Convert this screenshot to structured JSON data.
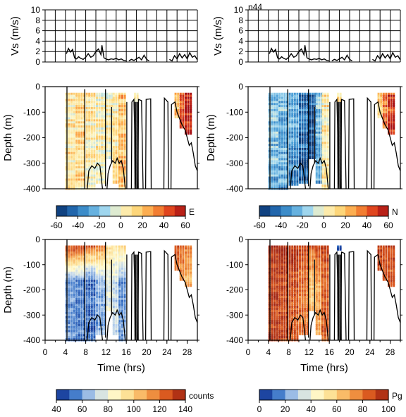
{
  "figure": {
    "annotation": "n44"
  },
  "colors": {
    "diverging": [
      "#08306b",
      "#2166ac",
      "#4a9fd8",
      "#9fd6ee",
      "#fdf6c3",
      "#fdd67a",
      "#fb9a3c",
      "#e0461f",
      "#a50f15"
    ],
    "sequential": [
      "#0b2a8c",
      "#3f78c9",
      "#b9d2ee",
      "#fffbd0",
      "#fddc8c",
      "#f5a04a",
      "#d9561e",
      "#9c1f10"
    ],
    "trace": "#000000"
  },
  "chart_data": [
    {
      "type": "line",
      "panel": "vs-left",
      "ylabel": "Vs (m/s)",
      "ylim": [
        0,
        10
      ],
      "yticks": [
        0,
        2,
        4,
        6,
        8,
        10
      ],
      "xlim": [
        0,
        30
      ],
      "xticks": [
        0,
        2,
        4,
        6,
        8,
        10,
        12,
        14,
        16,
        18,
        20,
        22,
        24,
        26,
        28,
        30
      ],
      "grid": true,
      "series": [
        {
          "x": [
            4.2,
            4.6,
            5.0,
            5.4,
            5.8,
            6.2,
            6.6,
            7.0,
            7.5,
            8.0,
            8.5,
            9.0,
            9.5,
            10.0,
            10.5,
            11.0,
            11.2,
            11.6,
            12.0,
            12.5,
            13.0,
            13.5,
            14.0,
            14.5,
            15.0,
            15.5,
            16.0
          ],
          "y": [
            1.6,
            2.6,
            1.9,
            2.4,
            0.8,
            0.6,
            1.0,
            0.7,
            0.5,
            0.9,
            1.6,
            0.9,
            1.2,
            2.0,
            2.5,
            1.4,
            3.2,
            0.8,
            0.6,
            0.4,
            0.6,
            0.5,
            0.7,
            0.4,
            0.6,
            0.3,
            0.2
          ]
        },
        {
          "x": [
            16.5,
            17.0,
            17.5,
            18.0,
            18.5,
            19.0,
            19.5,
            20.0,
            20.5
          ],
          "y": [
            0.2,
            0.5,
            0.3,
            0.6,
            0.9,
            0.4,
            1.3,
            0.5,
            0.2
          ]
        },
        {
          "x": [
            24.5,
            25.0,
            25.5,
            26.0,
            26.5,
            27.0,
            27.5,
            28.0,
            28.5,
            29.0,
            29.5,
            30.0
          ],
          "y": [
            0.5,
            0.2,
            1.2,
            0.6,
            1.6,
            0.8,
            1.4,
            0.6,
            1.8,
            0.9,
            1.2,
            0.4
          ]
        }
      ]
    },
    {
      "type": "line",
      "panel": "vs-right",
      "ylabel": "Vs (m/s)",
      "ylim": [
        0,
        10
      ],
      "yticks": [
        0,
        2,
        4,
        6,
        8,
        10
      ],
      "xlim": [
        0,
        30
      ],
      "xticks": [
        0,
        2,
        4,
        6,
        8,
        10,
        12,
        14,
        16,
        18,
        20,
        22,
        24,
        26,
        28,
        30
      ],
      "grid": true,
      "series": [
        {
          "x": [
            4.2,
            4.6,
            5.0,
            5.4,
            5.8,
            6.2,
            6.6,
            7.0,
            7.5,
            8.0,
            8.5,
            9.0,
            9.5,
            10.0,
            10.5,
            11.0,
            11.2,
            11.6,
            12.0,
            12.5,
            13.0,
            13.5,
            14.0,
            14.5,
            15.0,
            15.5,
            16.0
          ],
          "y": [
            1.6,
            2.6,
            1.9,
            2.4,
            0.8,
            0.6,
            1.0,
            0.7,
            0.5,
            0.9,
            1.6,
            0.9,
            1.2,
            2.0,
            2.5,
            1.4,
            3.2,
            0.8,
            0.6,
            0.4,
            0.6,
            0.5,
            0.7,
            0.4,
            0.6,
            0.3,
            0.2
          ]
        },
        {
          "x": [
            16.5,
            17.0,
            17.5,
            18.0,
            18.5,
            19.0,
            19.5,
            20.0,
            20.5
          ],
          "y": [
            0.2,
            0.5,
            0.3,
            0.6,
            0.9,
            0.4,
            1.3,
            0.5,
            0.2
          ]
        },
        {
          "x": [
            24.5,
            25.0,
            25.5,
            26.0,
            26.5,
            27.0,
            27.5,
            28.0,
            28.5,
            29.0,
            29.5,
            30.0
          ],
          "y": [
            0.5,
            0.2,
            1.2,
            0.6,
            1.6,
            0.8,
            1.4,
            0.6,
            1.8,
            0.9,
            1.2,
            0.4
          ]
        }
      ]
    },
    {
      "type": "heatmap",
      "panel": "depth-E",
      "ylabel": "Depth (m)",
      "ylim": [
        -400,
        0
      ],
      "yticks": [
        0,
        -100,
        -200,
        -300,
        -400
      ],
      "xlim": [
        0,
        30
      ],
      "colormap": "diverging",
      "colorbar": {
        "label": "E",
        "range": [
          -60,
          60
        ],
        "ticks": [
          -60,
          -40,
          -20,
          0,
          20,
          40,
          60
        ]
      },
      "columns": [
        {
          "x": [
            4,
            6
          ],
          "ybottom": -400,
          "mean": 10
        },
        {
          "x": [
            6,
            8
          ],
          "ybottom": -400,
          "mean": 14
        },
        {
          "x": [
            8,
            10
          ],
          "ybottom": -400,
          "mean": 6
        },
        {
          "x": [
            10,
            12
          ],
          "ybottom": -380,
          "mean": 4
        },
        {
          "x": [
            12,
            13.3
          ],
          "ybottom": -280,
          "mean": 2
        },
        {
          "x": [
            13.3,
            14.5
          ],
          "ybottom": -380,
          "mean": 8
        },
        {
          "x": [
            14.5,
            16
          ],
          "ybottom": -400,
          "mean": 20
        },
        {
          "x": [
            17.5,
            18.5
          ],
          "ybottom": -60,
          "mean": 5
        },
        {
          "x": [
            25.5,
            26.5
          ],
          "ybottom": -120,
          "mean": 20
        },
        {
          "x": [
            26.5,
            27.5
          ],
          "ybottom": -160,
          "mean": 40
        },
        {
          "x": [
            27.5,
            28.7
          ],
          "ybottom": -190,
          "mean": 52
        }
      ],
      "overlay_traces": true
    },
    {
      "type": "heatmap",
      "panel": "depth-N",
      "ylabel": "Depth (m)",
      "ylim": [
        -400,
        0
      ],
      "yticks": [
        0,
        -100,
        -200,
        -300,
        -400
      ],
      "xlim": [
        0,
        30
      ],
      "colormap": "diverging",
      "colorbar": {
        "label": "N",
        "range": [
          -60,
          60
        ],
        "ticks": [
          -60,
          -40,
          -20,
          0,
          20,
          40,
          60
        ]
      },
      "columns": [
        {
          "x": [
            4,
            6
          ],
          "ybottom": -400,
          "mean": -18
        },
        {
          "x": [
            6,
            8
          ],
          "ybottom": -400,
          "mean": -22
        },
        {
          "x": [
            8,
            10
          ],
          "ybottom": -390,
          "mean": -28
        },
        {
          "x": [
            10,
            12
          ],
          "ybottom": -380,
          "mean": -40
        },
        {
          "x": [
            12,
            13.3
          ],
          "ybottom": -280,
          "mean": -48
        },
        {
          "x": [
            13.3,
            14.5
          ],
          "ybottom": -380,
          "mean": -20
        },
        {
          "x": [
            14.5,
            16
          ],
          "ybottom": -400,
          "mean": 8
        },
        {
          "x": [
            17.5,
            18.5
          ],
          "ybottom": -60,
          "mean": 5
        },
        {
          "x": [
            25.5,
            26.5
          ],
          "ybottom": -120,
          "mean": 15
        },
        {
          "x": [
            26.5,
            27.5
          ],
          "ybottom": -160,
          "mean": 35
        },
        {
          "x": [
            27.5,
            28.7
          ],
          "ybottom": -190,
          "mean": 48
        }
      ],
      "overlay_traces": true
    },
    {
      "type": "heatmap",
      "panel": "depth-counts",
      "ylabel": "Depth (m)",
      "ylim": [
        -400,
        0
      ],
      "yticks": [
        0,
        -100,
        -200,
        -300,
        -400
      ],
      "xlim": [
        0,
        30
      ],
      "xlabel": "Time (hrs)",
      "xticks": [
        0,
        4,
        8,
        12,
        16,
        20,
        24,
        28
      ],
      "colormap": "sequential",
      "colorbar": {
        "label": "counts",
        "range": [
          40,
          140
        ],
        "ticks": [
          40,
          60,
          80,
          100,
          120,
          140
        ]
      },
      "columns": [
        {
          "x": [
            4,
            6
          ],
          "ybottom": -400,
          "mean": 58,
          "top": 130
        },
        {
          "x": [
            6,
            8
          ],
          "ybottom": -400,
          "mean": 55,
          "top": 128
        },
        {
          "x": [
            8,
            10
          ],
          "ybottom": -400,
          "mean": 52,
          "top": 125
        },
        {
          "x": [
            10,
            12
          ],
          "ybottom": -380,
          "mean": 62,
          "top": 120
        },
        {
          "x": [
            12,
            13.3
          ],
          "ybottom": -280,
          "mean": 78,
          "top": 95
        },
        {
          "x": [
            13.3,
            14.5
          ],
          "ybottom": -380,
          "mean": 72,
          "top": 90
        },
        {
          "x": [
            14.5,
            16
          ],
          "ybottom": -400,
          "mean": 60,
          "top": 95
        },
        {
          "x": [
            25.5,
            26.5
          ],
          "ybottom": -120,
          "mean": 118,
          "top": 125
        },
        {
          "x": [
            26.5,
            27.5
          ],
          "ybottom": -160,
          "mean": 112,
          "top": 122
        },
        {
          "x": [
            27.5,
            28.7
          ],
          "ybottom": -190,
          "mean": 106,
          "top": 118
        }
      ],
      "overlay_traces": true
    },
    {
      "type": "heatmap",
      "panel": "depth-Pg",
      "ylabel": "",
      "ylim": [
        -400,
        0
      ],
      "yticks": [
        0,
        -100,
        -200,
        -300,
        -400
      ],
      "xlim": [
        0,
        30
      ],
      "xlabel": "Time (hrs)",
      "xticks": [
        0,
        4,
        8,
        12,
        16,
        20,
        24,
        28
      ],
      "colormap": "sequential",
      "colorbar": {
        "label": "Pg",
        "range": [
          0,
          100
        ],
        "ticks": [
          0,
          20,
          40,
          60,
          80,
          100
        ]
      },
      "columns": [
        {
          "x": [
            4,
            6
          ],
          "ybottom": -400,
          "mean": 92,
          "top": 95
        },
        {
          "x": [
            6,
            8
          ],
          "ybottom": -400,
          "mean": 90,
          "top": 94
        },
        {
          "x": [
            8,
            10
          ],
          "ybottom": -400,
          "mean": 86,
          "top": 93
        },
        {
          "x": [
            10,
            12
          ],
          "ybottom": -380,
          "mean": 80,
          "top": 90
        },
        {
          "x": [
            12,
            13.3
          ],
          "ybottom": -280,
          "mean": 62,
          "top": 85
        },
        {
          "x": [
            13.3,
            14.5
          ],
          "ybottom": -380,
          "mean": 70,
          "top": 88
        },
        {
          "x": [
            14.5,
            16
          ],
          "ybottom": -400,
          "mean": 84,
          "top": 90
        },
        {
          "x": [
            17.5,
            18.5
          ],
          "ybottom": -40,
          "mean": 5,
          "top": 5
        },
        {
          "x": [
            18.5,
            24.5
          ],
          "ybottom": -20,
          "mean": 3,
          "top": 3
        },
        {
          "x": [
            25.5,
            26.5
          ],
          "ybottom": -120,
          "mean": 88,
          "top": 90
        },
        {
          "x": [
            26.5,
            27.5
          ],
          "ybottom": -160,
          "mean": 86,
          "top": 90
        },
        {
          "x": [
            27.5,
            28.7
          ],
          "ybottom": -190,
          "mean": 84,
          "top": 90
        }
      ],
      "overlay_traces": true
    }
  ]
}
